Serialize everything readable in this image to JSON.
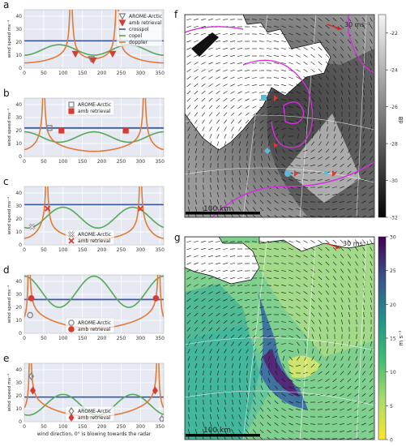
{
  "colors": {
    "plot_bg": "#e6e9f2",
    "grid": "#ffffff",
    "crosspol": "#3b5ba8",
    "copol": "#55a858",
    "doppler": "#e07b39",
    "arome": "#7f7f7f",
    "amb": "#d63c34",
    "magenta": "#d92de0",
    "scale_red": "#d62020"
  },
  "chart_data": [
    {
      "panel": "a",
      "type": "line",
      "xlim": [
        0,
        360
      ],
      "ylim": [
        0,
        45
      ],
      "xticks": [
        0,
        50,
        100,
        150,
        200,
        250,
        300,
        350
      ],
      "yticks": [
        0,
        10,
        20,
        30,
        40
      ],
      "ylabel": "wind speed ms⁻¹",
      "legend": [
        "AROME-Arctic",
        "amb retrieval",
        "crosspol",
        "copol",
        "doppler"
      ],
      "arome_marker": "triangle-down-open",
      "amb_marker": "triangle-down",
      "crosspol": 21,
      "copol": {
        "mean": 14,
        "amp": 4,
        "peaks": [
          90,
          270
        ]
      },
      "doppler_asymptotes": [
        120,
        240
      ],
      "doppler_min": {
        "x": 180,
        "y": 7
      },
      "arome": [
        {
          "x": 173,
          "y": 7
        }
      ],
      "amb": [
        {
          "x": 132,
          "y": 11
        },
        {
          "x": 228,
          "y": 11
        },
        {
          "x": 178,
          "y": 6
        }
      ]
    },
    {
      "panel": "b",
      "type": "line",
      "xlim": [
        0,
        360
      ],
      "ylim": [
        0,
        45
      ],
      "xticks": [
        0,
        50,
        100,
        150,
        200,
        250,
        300,
        350
      ],
      "yticks": [
        0,
        10,
        20,
        30,
        40
      ],
      "ylabel": "wind speed ms⁻¹",
      "legend": [
        "AROME-Arctic",
        "amb retrieval"
      ],
      "arome_marker": "square-open",
      "amb_marker": "square",
      "crosspol": 22,
      "copol": {
        "mean": 15,
        "amp": 4,
        "peaks": [
          0,
          180
        ]
      },
      "doppler_asymptotes": [
        50,
        310
      ],
      "doppler_min": {
        "x": 180,
        "y": 50
      },
      "arome": [
        {
          "x": 65,
          "y": 22
        }
      ],
      "amb": [
        {
          "x": 96,
          "y": 20
        },
        {
          "x": 262,
          "y": 20
        }
      ]
    },
    {
      "panel": "c",
      "type": "line",
      "xlim": [
        0,
        360
      ],
      "ylim": [
        0,
        45
      ],
      "xticks": [
        0,
        50,
        100,
        150,
        200,
        250,
        300,
        350
      ],
      "yticks": [
        0,
        10,
        20,
        30,
        40
      ],
      "ylabel": "wind speed ms⁻¹",
      "legend": [
        "AROME-Arctic",
        "amb retrieval"
      ],
      "arome_marker": "x-open",
      "amb_marker": "x",
      "crosspol": 31,
      "copol": {
        "mean": 21,
        "amp": 8,
        "peaks": [
          100,
          260
        ]
      },
      "doppler_asymptotes": [
        58,
        300
      ],
      "doppler_min": {
        "x": 180,
        "y": 50
      },
      "arome": [
        {
          "x": 20,
          "y": 14
        }
      ],
      "amb": [
        {
          "x": 60,
          "y": 28
        },
        {
          "x": 300,
          "y": 28
        }
      ]
    },
    {
      "panel": "d",
      "type": "line",
      "xlim": [
        0,
        360
      ],
      "ylim": [
        0,
        45
      ],
      "xticks": [
        0,
        50,
        100,
        150,
        200,
        250,
        300,
        350
      ],
      "yticks": [
        0,
        10,
        20,
        30,
        40
      ],
      "ylabel": "wind speed ms⁻¹",
      "legend": [
        "AROME-Arctic",
        "amb retrieval"
      ],
      "arome_marker": "circle-open",
      "amb_marker": "circle",
      "crosspol": 26,
      "copol": {
        "mean": 32,
        "amp": 12,
        "peaks": [
          0,
          180
        ]
      },
      "doppler_asymptotes": [
        12,
        348
      ],
      "doppler_min": {
        "x": 180,
        "y": 50
      },
      "arome": [
        {
          "x": 15,
          "y": 14
        }
      ],
      "amb": [
        {
          "x": 18,
          "y": 27
        },
        {
          "x": 340,
          "y": 27
        }
      ]
    },
    {
      "panel": "e",
      "type": "line",
      "xlim": [
        0,
        360
      ],
      "ylim": [
        0,
        45
      ],
      "xticks": [
        0,
        50,
        100,
        150,
        200,
        250,
        300,
        350
      ],
      "yticks": [
        0,
        10,
        20,
        30,
        40
      ],
      "xlabel": "wind direction, 0° is blowing towards the radar",
      "ylabel": "wind speed ms⁻¹",
      "legend": [
        "AROME-Arctic",
        "amb retrieval"
      ],
      "arome_marker": "diamond-open",
      "amb_marker": "diamond",
      "crosspol": 19,
      "copol": {
        "mean": 13,
        "amp": 8,
        "peaks": [
          100,
          260
        ]
      },
      "doppler_asymptotes": [
        15,
        345
      ],
      "doppler_min": {
        "x": 180,
        "y": 50
      },
      "arome": [
        {
          "x": 18,
          "y": 35
        },
        {
          "x": 355,
          "y": 2
        }
      ],
      "amb": [
        {
          "x": 22,
          "y": 24
        },
        {
          "x": 338,
          "y": 24
        }
      ]
    }
  ],
  "panel_labels": [
    "a",
    "b",
    "c",
    "d",
    "e",
    "f",
    "g"
  ],
  "map_f": {
    "scale_arrow_label": "30 ms⁻¹",
    "scalebar_label": "100 km",
    "colorbar": {
      "label": "dB",
      "min": -32,
      "max": -21,
      "ticks": [
        -22,
        -24,
        -26,
        -28,
        -30,
        -32
      ],
      "scale": "grayscale"
    }
  },
  "map_g": {
    "scale_arrow_label": "30 ms⁻¹",
    "scalebar_label": "100 km",
    "colorbar": {
      "label": "m s⁻¹",
      "min": 0,
      "max": 30,
      "ticks": [
        0,
        5,
        10,
        15,
        20,
        25,
        30
      ],
      "scale": "viridis_r"
    }
  }
}
